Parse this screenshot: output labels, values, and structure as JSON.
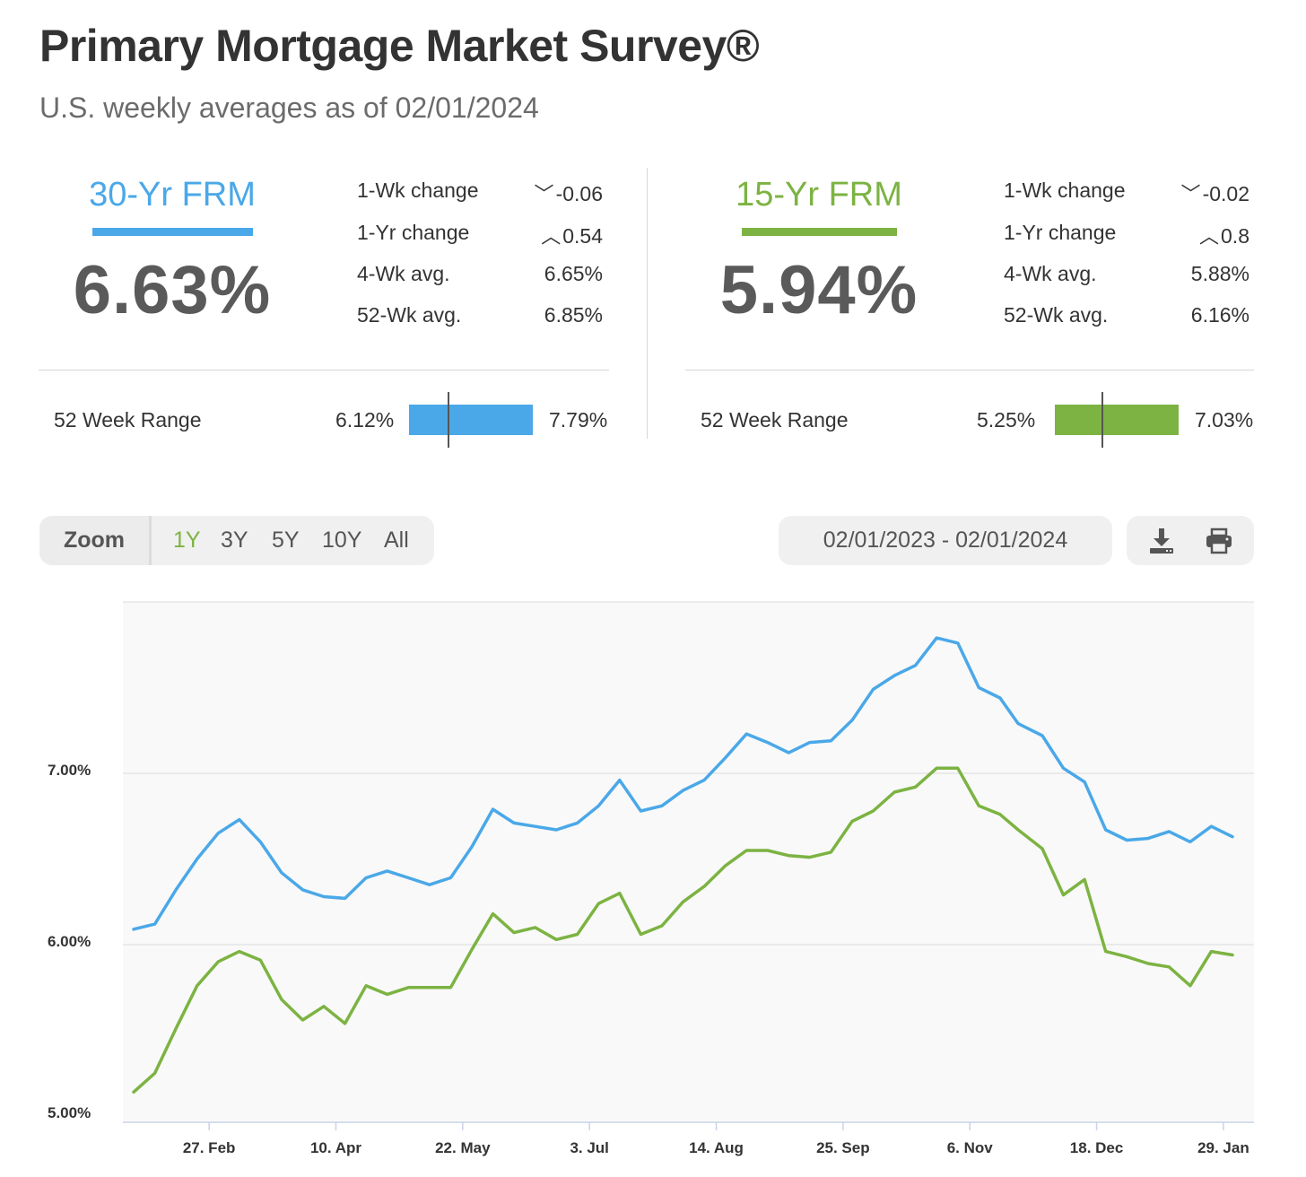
{
  "header": {
    "title": "Primary Mortgage Market Survey®",
    "subtitle": "U.S. weekly averages as of 02/01/2024"
  },
  "frm30": {
    "label": "30-Yr FRM",
    "color": "#4aa8e8",
    "rate": "6.63%",
    "wk_change_label": "1-Wk change",
    "wk_change": "-0.06",
    "wk_change_dir": "down",
    "yr_change_label": "1-Yr change",
    "yr_change": "0.54",
    "yr_change_dir": "up",
    "avg4_label": "4-Wk avg.",
    "avg4": "6.65%",
    "avg52_label": "52-Wk avg.",
    "avg52": "6.85%",
    "range_label": "52 Week Range",
    "range_low": "6.12%",
    "range_high": "7.79%",
    "range_current_fraction": 0.31
  },
  "frm15": {
    "label": "15-Yr FRM",
    "color": "#7cb342",
    "rate": "5.94%",
    "wk_change_label": "1-Wk change",
    "wk_change": "-0.02",
    "wk_change_dir": "down",
    "yr_change_label": "1-Yr change",
    "yr_change": "0.8",
    "yr_change_dir": "up",
    "avg4_label": "4-Wk avg.",
    "avg4": "5.88%",
    "avg52_label": "52-Wk avg.",
    "avg52": "6.16%",
    "range_label": "52 Week Range",
    "range_low": "5.25%",
    "range_high": "7.03%",
    "range_current_fraction": 0.38
  },
  "controls": {
    "zoom_label": "Zoom",
    "zoom_options": [
      "1Y",
      "3Y",
      "5Y",
      "10Y",
      "All"
    ],
    "active_zoom": "1Y",
    "date_range": "02/01/2023 - 02/01/2024",
    "download_icon": "download-icon",
    "print_icon": "print-icon"
  },
  "chart_data": {
    "type": "line",
    "title": "",
    "xlabel": "",
    "ylabel": "",
    "ylim": [
      5.0,
      8.0
    ],
    "yticks": [
      5.0,
      6.0,
      7.0
    ],
    "ytick_labels": [
      "5.00%",
      "6.00%",
      "7.00%"
    ],
    "x_start": "2023-02-02",
    "x_end": "2024-02-01",
    "xticks": [
      {
        "date": "2023-02-27",
        "label": "27. Feb"
      },
      {
        "date": "2023-04-10",
        "label": "10. Apr"
      },
      {
        "date": "2023-05-22",
        "label": "22. May"
      },
      {
        "date": "2023-07-03",
        "label": "3. Jul"
      },
      {
        "date": "2023-08-14",
        "label": "14. Aug"
      },
      {
        "date": "2023-09-25",
        "label": "25. Sep"
      },
      {
        "date": "2023-11-06",
        "label": "6. Nov"
      },
      {
        "date": "2023-12-18",
        "label": "18. Dec"
      },
      {
        "date": "2024-01-29",
        "label": "29. Jan"
      }
    ],
    "grid": true,
    "x": [
      "2023-02-02",
      "2023-02-09",
      "2023-02-16",
      "2023-02-23",
      "2023-03-02",
      "2023-03-09",
      "2023-03-16",
      "2023-03-23",
      "2023-03-30",
      "2023-04-06",
      "2023-04-13",
      "2023-04-20",
      "2023-04-27",
      "2023-05-04",
      "2023-05-11",
      "2023-05-18",
      "2023-05-25",
      "2023-06-01",
      "2023-06-08",
      "2023-06-15",
      "2023-06-22",
      "2023-06-29",
      "2023-07-06",
      "2023-07-13",
      "2023-07-20",
      "2023-07-27",
      "2023-08-03",
      "2023-08-10",
      "2023-08-17",
      "2023-08-24",
      "2023-08-31",
      "2023-09-07",
      "2023-09-14",
      "2023-09-21",
      "2023-09-28",
      "2023-10-05",
      "2023-10-12",
      "2023-10-19",
      "2023-10-26",
      "2023-11-02",
      "2023-11-09",
      "2023-11-16",
      "2023-11-22",
      "2023-11-30",
      "2023-12-07",
      "2023-12-14",
      "2023-12-21",
      "2023-12-28",
      "2024-01-04",
      "2024-01-11",
      "2024-01-18",
      "2024-01-25",
      "2024-02-01"
    ],
    "series": [
      {
        "name": "30-Yr FRM",
        "color": "#4aa8e8",
        "values": [
          6.09,
          6.12,
          6.32,
          6.5,
          6.65,
          6.73,
          6.6,
          6.42,
          6.32,
          6.28,
          6.27,
          6.39,
          6.43,
          6.39,
          6.35,
          6.39,
          6.57,
          6.79,
          6.71,
          6.69,
          6.67,
          6.71,
          6.81,
          6.96,
          6.78,
          6.81,
          6.9,
          6.96,
          7.09,
          7.23,
          7.18,
          7.12,
          7.18,
          7.19,
          7.31,
          7.49,
          7.57,
          7.63,
          7.79,
          7.76,
          7.5,
          7.44,
          7.29,
          7.22,
          7.03,
          6.95,
          6.67,
          6.61,
          6.62,
          6.66,
          6.6,
          6.69,
          6.63
        ]
      },
      {
        "name": "15-Yr FRM",
        "color": "#7cb342",
        "values": [
          5.14,
          5.25,
          5.51,
          5.76,
          5.9,
          5.96,
          5.91,
          5.68,
          5.56,
          5.64,
          5.54,
          5.76,
          5.71,
          5.75,
          5.75,
          5.75,
          5.97,
          6.18,
          6.07,
          6.1,
          6.03,
          6.06,
          6.24,
          6.3,
          6.06,
          6.11,
          6.25,
          6.34,
          6.46,
          6.55,
          6.55,
          6.52,
          6.51,
          6.54,
          6.72,
          6.78,
          6.89,
          6.92,
          7.03,
          7.03,
          6.81,
          6.76,
          6.67,
          6.56,
          6.29,
          6.38,
          5.96,
          5.93,
          5.89,
          5.87,
          5.76,
          5.96,
          5.94
        ]
      }
    ]
  }
}
